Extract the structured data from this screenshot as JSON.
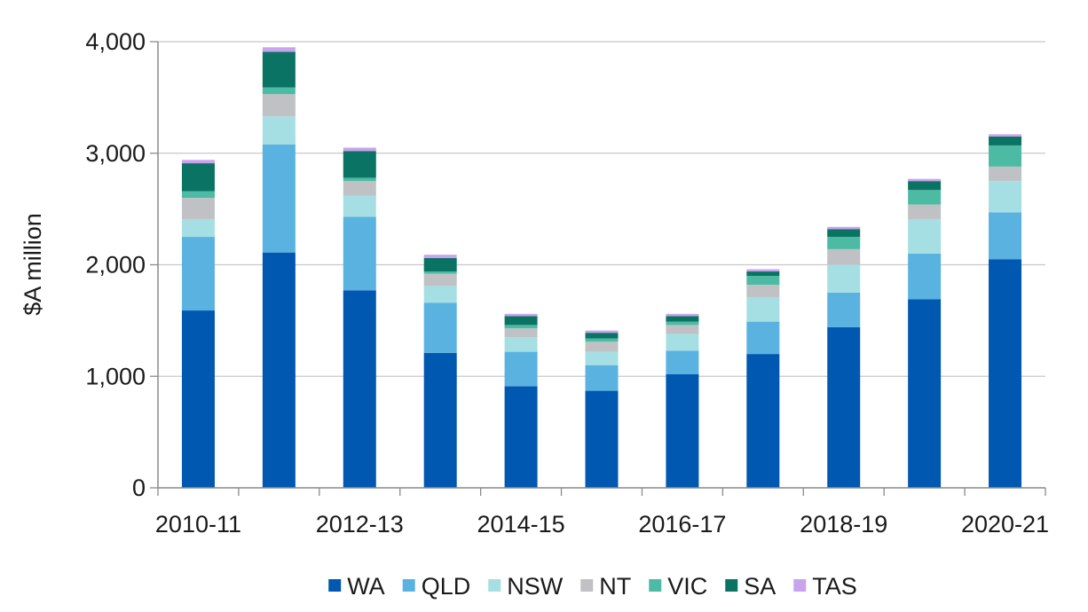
{
  "chart_data": {
    "type": "bar",
    "stacked": true,
    "title": "",
    "xlabel": "",
    "ylabel": "$A million",
    "ylim": [
      0,
      4000
    ],
    "yticks": [
      0,
      1000,
      2000,
      3000,
      4000
    ],
    "ytick_labels": [
      "0",
      "1,000",
      "2,000",
      "3,000",
      "4,000"
    ],
    "grid": "horizontal",
    "legend_position": "bottom",
    "categories": [
      "2010-11",
      "2011-12",
      "2012-13",
      "2013-14",
      "2014-15",
      "2015-16",
      "2016-17",
      "2017-18",
      "2018-19",
      "2019-20",
      "2020-21"
    ],
    "xtick_labels": [
      "2010-11",
      "",
      "2012-13",
      "",
      "2014-15",
      "",
      "2016-17",
      "",
      "2018-19",
      "",
      "2020-21"
    ],
    "series": [
      {
        "name": "WA",
        "color": "#0058b0",
        "values": [
          1590,
          2110,
          1770,
          1210,
          910,
          870,
          1020,
          1200,
          1440,
          1690,
          2050
        ]
      },
      {
        "name": "QLD",
        "color": "#5ab2e0",
        "values": [
          660,
          970,
          660,
          450,
          310,
          230,
          210,
          290,
          310,
          410,
          420
        ]
      },
      {
        "name": "NSW",
        "color": "#a6dfe3",
        "values": [
          160,
          250,
          190,
          150,
          130,
          120,
          150,
          220,
          250,
          310,
          280
        ]
      },
      {
        "name": "NT",
        "color": "#bfc1c4",
        "values": [
          190,
          200,
          130,
          110,
          80,
          90,
          80,
          110,
          140,
          130,
          130
        ]
      },
      {
        "name": "VIC",
        "color": "#4dbaa3",
        "values": [
          60,
          60,
          30,
          20,
          30,
          30,
          30,
          80,
          110,
          130,
          190
        ]
      },
      {
        "name": "SA",
        "color": "#0b7363",
        "values": [
          250,
          320,
          240,
          120,
          80,
          50,
          50,
          40,
          70,
          80,
          80
        ]
      },
      {
        "name": "TAS",
        "color": "#c9a4ec",
        "values": [
          30,
          40,
          30,
          30,
          20,
          20,
          20,
          20,
          20,
          20,
          20
        ]
      }
    ]
  }
}
